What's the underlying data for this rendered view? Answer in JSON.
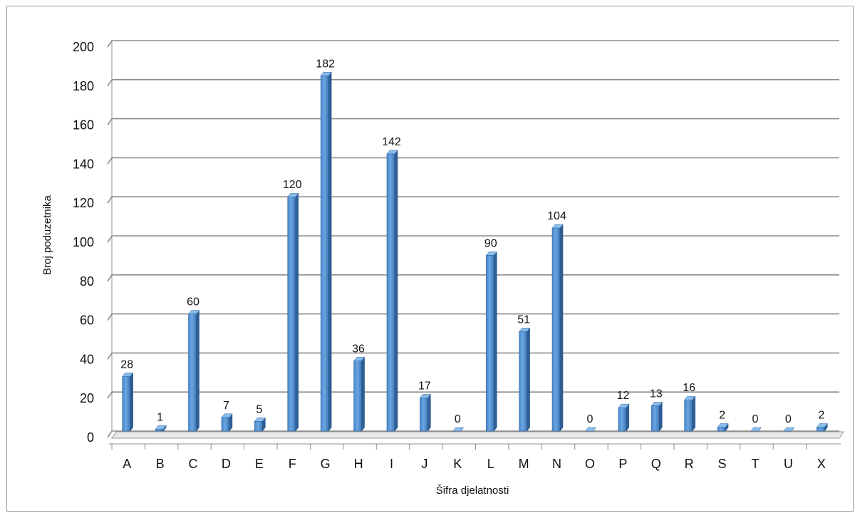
{
  "chart_data": {
    "type": "bar",
    "title": "",
    "xlabel": "Šifra djelatnosti",
    "ylabel": "Broj poduzetnika",
    "ylim": [
      0,
      200
    ],
    "ytick_step": 20,
    "grid": true,
    "legend": "none",
    "bar_color": "#5b9bd5",
    "categories": [
      "A",
      "B",
      "C",
      "D",
      "E",
      "F",
      "G",
      "H",
      "I",
      "J",
      "K",
      "L",
      "M",
      "N",
      "O",
      "P",
      "Q",
      "R",
      "S",
      "T",
      "U",
      "X"
    ],
    "values": [
      28,
      1,
      60,
      7,
      5,
      120,
      182,
      36,
      142,
      17,
      0,
      90,
      51,
      104,
      0,
      12,
      13,
      16,
      2,
      0,
      0,
      2
    ],
    "data_labels": [
      "28",
      "1",
      "60",
      "7",
      "5",
      "120",
      "182",
      "36",
      "142",
      "17",
      "0",
      "90",
      "51",
      "104",
      "0",
      "12",
      "13",
      "16",
      "2",
      "0",
      "0",
      "2"
    ]
  }
}
